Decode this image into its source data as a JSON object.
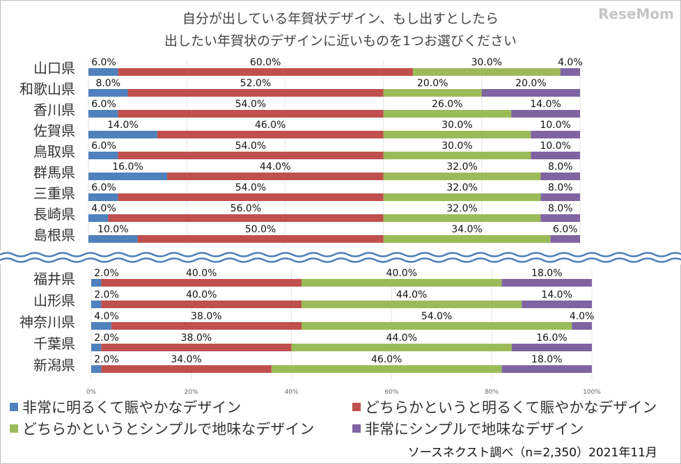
{
  "chart_data": {
    "type": "bar",
    "orientation": "horizontal-stacked-100",
    "title_lines": [
      "自分が出している年賀状デザイン、もし出すとしたら",
      "出したい年賀状のデザインに近いものを1つお選びください"
    ],
    "series": [
      {
        "name": "非常に明るくて賑やかなデザイン",
        "color": "#4f81bd"
      },
      {
        "name": "どちらかというと明るくて賑やかなデザイン",
        "color": "#c0504d"
      },
      {
        "name": "どちらかというとシンプルで地味なデザイン",
        "color": "#9bbb59"
      },
      {
        "name": "非常にシンプルで地味なデザイン",
        "color": "#8064a2"
      }
    ],
    "panels": [
      {
        "rows": [
          {
            "category": "山口県",
            "values": [
              6,
              60,
              30,
              4
            ]
          },
          {
            "category": "和歌山県",
            "values": [
              8,
              52,
              20,
              20
            ]
          },
          {
            "category": "香川県",
            "values": [
              6,
              54,
              26,
              14
            ]
          },
          {
            "category": "佐賀県",
            "values": [
              14,
              46,
              30,
              10
            ]
          },
          {
            "category": "鳥取県",
            "values": [
              6,
              54,
              30,
              10
            ]
          },
          {
            "category": "群馬県",
            "values": [
              16,
              44,
              32,
              8
            ]
          },
          {
            "category": "三重県",
            "values": [
              6,
              54,
              32,
              8
            ]
          },
          {
            "category": "長崎県",
            "values": [
              4,
              56,
              32,
              8
            ]
          },
          {
            "category": "島根県",
            "values": [
              10,
              50,
              34,
              6
            ]
          }
        ]
      },
      {
        "rows": [
          {
            "category": "福井県",
            "values": [
              2,
              40,
              40,
              18
            ]
          },
          {
            "category": "山形県",
            "values": [
              2,
              40,
              44,
              14
            ]
          },
          {
            "category": "神奈川県",
            "values": [
              4,
              38,
              54,
              4
            ]
          },
          {
            "category": "千葉県",
            "values": [
              2,
              38,
              44,
              16
            ]
          },
          {
            "category": "新潟県",
            "values": [
              2,
              34,
              46,
              18
            ]
          }
        ]
      }
    ],
    "xticks": [
      "0%",
      "20%",
      "40%",
      "60%",
      "80%",
      "100%"
    ],
    "xlim": [
      0,
      100
    ],
    "legend_position": "bottom",
    "source": "ソースネクスト調べ（n=2,350）2021年11月",
    "watermark": "ReseMom"
  }
}
